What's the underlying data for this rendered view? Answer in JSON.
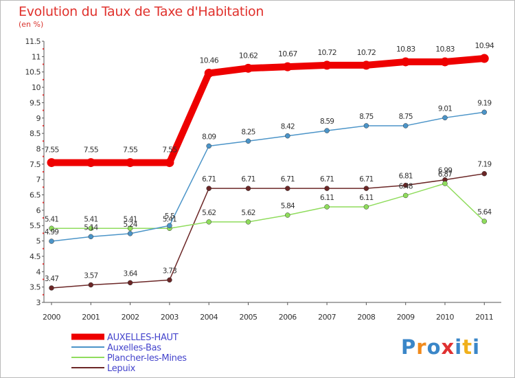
{
  "chart_data": {
    "type": "line",
    "title": "Evolution du Taux de Taxe d'Habitation",
    "subtitle": "(en %)",
    "x": [
      "2000",
      "2001",
      "2002",
      "2003",
      "2004",
      "2005",
      "2006",
      "2007",
      "2008",
      "2009",
      "2010",
      "2011"
    ],
    "ylim": [
      3,
      11.5
    ],
    "yticks": [
      "3",
      "3.5",
      "4",
      "4.5",
      "5",
      "5.5",
      "6",
      "6.5",
      "7",
      "7.5",
      "8",
      "8.5",
      "9",
      "9.5",
      "10",
      "10.5",
      "11",
      "11.5"
    ],
    "grid": false,
    "legend_position": "bottom-left",
    "series": [
      {
        "name": "AUXELLES-HAUT",
        "color": "#ee0000",
        "values": [
          7.55,
          7.55,
          7.55,
          7.55,
          10.46,
          10.62,
          10.67,
          10.72,
          10.72,
          10.83,
          10.83,
          10.94
        ],
        "labels": [
          "7.55",
          "7.55",
          "7.55",
          "7.55",
          "10.46",
          "10.62",
          "10.67",
          "10.72",
          "10.72",
          "10.83",
          "10.83",
          "10.94"
        ]
      },
      {
        "name": "Auxelles-Bas",
        "color": "#4b94c8",
        "values": [
          4.99,
          5.14,
          5.24,
          5.5,
          8.09,
          8.25,
          8.42,
          8.59,
          8.75,
          8.75,
          9.01,
          9.19
        ],
        "labels": [
          "4.99",
          "5.14",
          "5.24",
          "5.5",
          "8.09",
          "8.25",
          "8.42",
          "8.59",
          "8.75",
          "8.75",
          "9.01",
          "9.19"
        ]
      },
      {
        "name": "Plancher-les-Mines",
        "color": "#8fdc5c",
        "values": [
          5.41,
          5.41,
          5.41,
          5.41,
          5.62,
          5.62,
          5.84,
          6.11,
          6.11,
          6.48,
          6.87,
          5.64
        ],
        "labels": [
          "5.41",
          "5.41",
          "5.41",
          "5.41",
          "5.62",
          "5.62",
          "5.84",
          "6.11",
          "6.11",
          "6.48",
          "6.87",
          "5.64"
        ]
      },
      {
        "name": "Lepuix",
        "color": "#6b2626",
        "values": [
          3.47,
          3.57,
          3.64,
          3.73,
          6.71,
          6.71,
          6.71,
          6.71,
          6.71,
          6.81,
          6.99,
          7.19
        ],
        "labels": [
          "3.47",
          "3.57",
          "3.64",
          "3.73",
          "6.71",
          "6.71",
          "6.71",
          "6.71",
          "6.71",
          "6.81",
          "6.99",
          "7.19"
        ]
      }
    ]
  },
  "logo": {
    "text": "Proxiti",
    "letters": [
      "P",
      "r",
      "o",
      "x",
      "i",
      "t",
      "i"
    ],
    "colors": [
      "#3a86c8",
      "#f08a1c",
      "#3a86c8",
      "#e03030",
      "#3a86c8",
      "#f0b01c",
      "#3a86c8"
    ]
  }
}
